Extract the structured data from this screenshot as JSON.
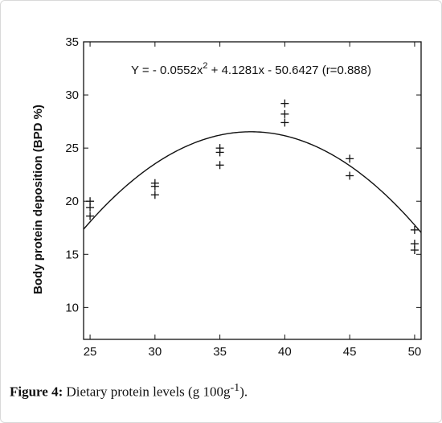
{
  "caption": {
    "label": "Figure 4:",
    "text_before": " Dietary protein levels (g 100g",
    "superscript": "-1",
    "text_after": ")."
  },
  "chart_data": {
    "type": "scatter",
    "title": "",
    "xlabel": "",
    "ylabel": "Body protein deposition (BPD %)",
    "xlim": [
      24.5,
      50.5
    ],
    "ylim": [
      7,
      35
    ],
    "x_ticks": [
      "25",
      "30",
      "35",
      "40",
      "45",
      "50"
    ],
    "y_ticks": [
      "10",
      "15",
      "20",
      "25",
      "30",
      "35"
    ],
    "annotation": {
      "prefix": "Y = - 0.0552x",
      "sup": "2",
      "suffix": " + 4.1281x - 50.6427 (r=0.888)"
    },
    "series": [
      {
        "marker": "+",
        "points": [
          [
            25,
            20.0
          ],
          [
            25,
            19.4
          ],
          [
            25,
            18.6
          ],
          [
            30,
            21.7
          ],
          [
            30,
            21.4
          ],
          [
            30,
            20.6
          ],
          [
            35,
            25.0
          ],
          [
            35,
            24.6
          ],
          [
            35,
            23.4
          ],
          [
            40,
            29.2
          ],
          [
            40,
            28.2
          ],
          [
            40,
            27.4
          ],
          [
            45,
            24.0
          ],
          [
            45,
            22.4
          ],
          [
            50,
            17.3
          ],
          [
            50,
            16.0
          ],
          [
            50,
            15.4
          ]
        ]
      }
    ],
    "fit": {
      "type": "quadratic",
      "a": -0.0552,
      "b": 4.1281,
      "c": -50.6427
    },
    "grid": false
  }
}
